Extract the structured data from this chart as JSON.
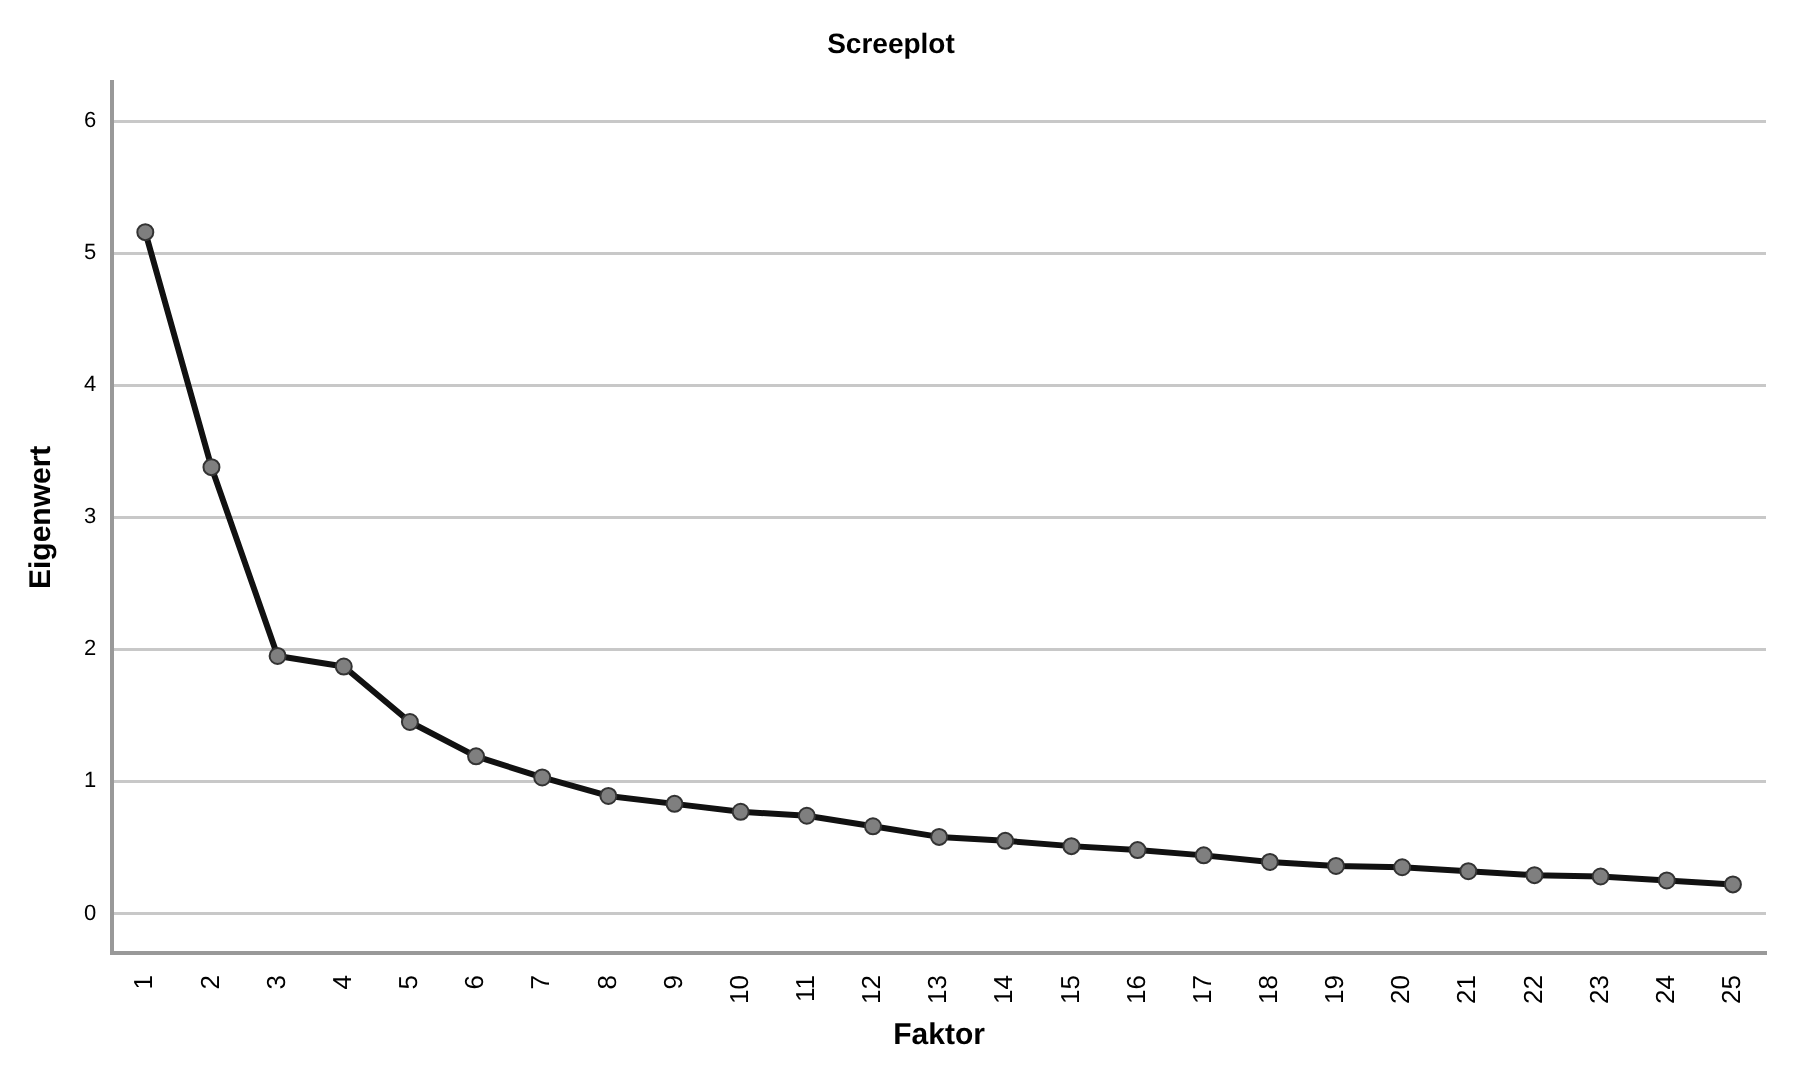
{
  "chart_data": {
    "type": "line",
    "title": "Screeplot",
    "xlabel": "Faktor",
    "ylabel": "Eigenwert",
    "categories": [
      "1",
      "2",
      "3",
      "4",
      "5",
      "6",
      "7",
      "8",
      "9",
      "10",
      "11",
      "12",
      "13",
      "14",
      "15",
      "16",
      "17",
      "18",
      "19",
      "20",
      "21",
      "22",
      "23",
      "24",
      "25"
    ],
    "series": [
      {
        "color": "#111111",
        "values": [
          5.16,
          3.38,
          1.95,
          1.87,
          1.45,
          1.19,
          1.03,
          0.89,
          0.83,
          0.77,
          0.74,
          0.66,
          0.58,
          0.55,
          0.51,
          0.48,
          0.44,
          0.39,
          0.36,
          0.35,
          0.32,
          0.29,
          0.28,
          0.25,
          0.22
        ]
      }
    ],
    "ylim": [
      -0.3,
      6.3
    ],
    "yticks": [
      0,
      1,
      2,
      3,
      4,
      5,
      6
    ],
    "grid": "y",
    "legend": false,
    "marker": "circle",
    "line_style": "solid"
  }
}
